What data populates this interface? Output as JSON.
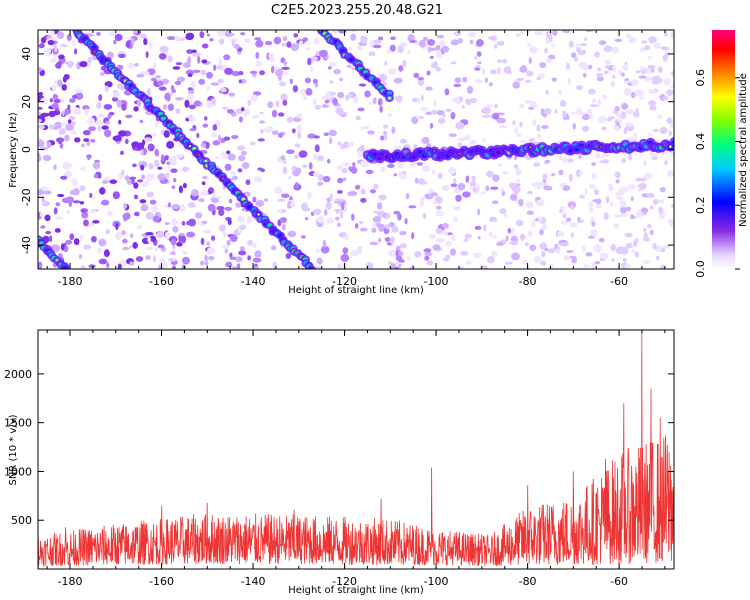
{
  "title": "C2E5.2023.255.20.48.G21",
  "chart_data": [
    {
      "type": "heatmap",
      "xlabel": "Height of straight line (km)",
      "ylabel": "Frequency (Hz)",
      "xlim": [
        -187,
        -48
      ],
      "ylim": [
        -50,
        50
      ],
      "x_ticks": [
        -180,
        -160,
        -140,
        -120,
        -100,
        -80,
        -60
      ],
      "y_ticks": [
        -40,
        -20,
        0,
        20,
        40
      ],
      "colorbar": {
        "label": "Normalized spectral amplitude",
        "range": [
          0,
          0.75
        ],
        "ticks": [
          0.0,
          0.2,
          0.4,
          0.6
        ]
      },
      "features": [
        {
          "kind": "line",
          "from": [
            -187,
            -38
          ],
          "to": [
            -181,
            -50
          ]
        },
        {
          "kind": "line",
          "from": [
            -179,
            50
          ],
          "to": [
            -127,
            -50
          ]
        },
        {
          "kind": "line",
          "from": [
            -125,
            50
          ],
          "to": [
            -110,
            22
          ]
        },
        {
          "kind": "band",
          "from": [
            -115,
            -3
          ],
          "to": [
            -48,
            2
          ]
        }
      ]
    },
    {
      "type": "line",
      "xlabel": "Height of straight line (km)",
      "ylabel": "SNR (10 * v/v)",
      "xlim": [
        -187,
        -48
      ],
      "ylim": [
        0,
        2450
      ],
      "x_ticks": [
        -180,
        -160,
        -140,
        -120,
        -100,
        -80,
        -60
      ],
      "y_ticks": [
        500,
        1000,
        1500,
        2000
      ],
      "color": "#ee3333",
      "envelope": [
        {
          "x": -187,
          "low": 30,
          "high": 350
        },
        {
          "x": -170,
          "low": 40,
          "high": 470
        },
        {
          "x": -150,
          "low": 50,
          "high": 580
        },
        {
          "x": -130,
          "low": 50,
          "high": 560
        },
        {
          "x": -110,
          "low": 40,
          "high": 520
        },
        {
          "x": -100,
          "low": 40,
          "high": 420
        },
        {
          "x": -88,
          "low": 30,
          "high": 350
        },
        {
          "x": -80,
          "low": 40,
          "high": 650
        },
        {
          "x": -70,
          "low": 40,
          "high": 760
        },
        {
          "x": -60,
          "low": 50,
          "high": 1200
        },
        {
          "x": -48,
          "low": 60,
          "high": 1450
        }
      ],
      "spikes": [
        {
          "x": -181,
          "y": 430
        },
        {
          "x": -160,
          "y": 650
        },
        {
          "x": -150,
          "y": 680
        },
        {
          "x": -131,
          "y": 610
        },
        {
          "x": -112,
          "y": 720
        },
        {
          "x": -101,
          "y": 1040
        },
        {
          "x": -80,
          "y": 860
        },
        {
          "x": -70,
          "y": 1000
        },
        {
          "x": -63,
          "y": 1130
        },
        {
          "x": -59,
          "y": 1700
        },
        {
          "x": -55,
          "y": 2440
        },
        {
          "x": -53,
          "y": 1850
        },
        {
          "x": -51,
          "y": 1550
        }
      ]
    }
  ]
}
